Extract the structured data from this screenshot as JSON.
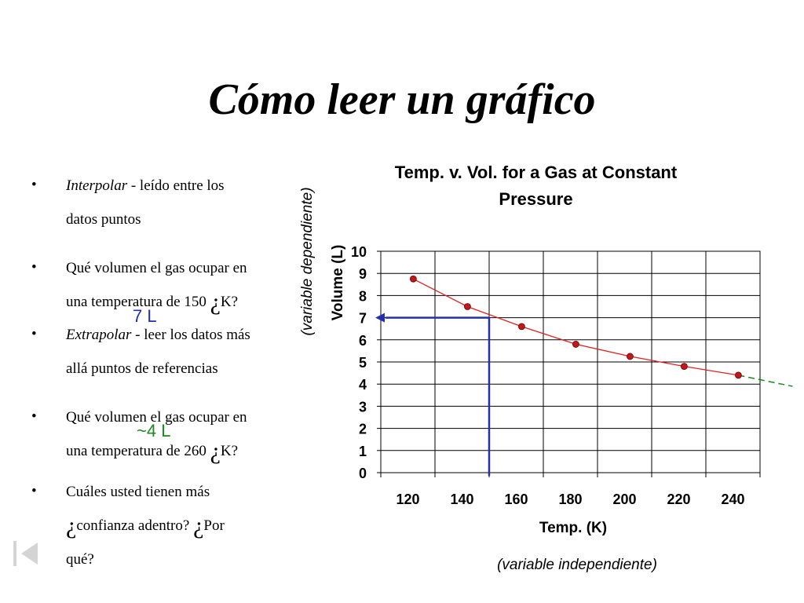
{
  "page": {
    "title": "Cómo leer un gráfico"
  },
  "bullets": [
    {
      "mark": "•",
      "lines": [
        [
          {
            "t": "Interpolar",
            "i": true
          },
          {
            "t": " - leído entre los"
          }
        ],
        [
          {
            "t": "datos  puntos"
          }
        ]
      ]
    },
    {
      "mark": "•",
      "lines": [
        [
          {
            "t": "Qué volumen el gas  ocupar en"
          }
        ],
        [
          {
            "t": "una temperatura de 150 "
          },
          {
            "t": "¿",
            "inv": true
          },
          {
            "t": "K?"
          }
        ]
      ]
    },
    {
      "mark": "•",
      "lines": [
        [
          {
            "t": "Extrapolar",
            "i": true
          },
          {
            "t": " - leer los datos más"
          }
        ],
        [
          {
            "t": "allá  puntos de referencias"
          }
        ]
      ]
    },
    {
      "mark": "•",
      "lines": [
        [
          {
            "t": "Qué volumen el gas  ocupar en"
          }
        ],
        [
          {
            "t": "una temperatura de 260 "
          },
          {
            "t": "¿",
            "inv": true
          },
          {
            "t": "K?"
          }
        ]
      ]
    },
    {
      "mark": "•",
      "lines": [
        [
          {
            "t": "Cuáles usted tienen más"
          }
        ],
        [
          {
            "t": "¿",
            "inv": true
          },
          {
            "t": "confianza adentro?  "
          },
          {
            "t": "¿",
            "inv": true
          },
          {
            "t": "Por"
          }
        ],
        [
          {
            "t": "qué?"
          }
        ]
      ]
    }
  ],
  "annotations": {
    "interp_value": "7 L",
    "extrap_value": "~4 L",
    "interp_color": "#2430a8",
    "extrap_color": "#1a8a1a"
  },
  "chart_data": {
    "type": "scatter",
    "title_line1": "Temp. v. Vol. for a Gas at Constant",
    "title_line2": "Pressure",
    "xlabel": "Temp. (K)",
    "ylabel": "Volume (L)",
    "xlabel_note": "(variable independiente)",
    "ylabel_note": "(variable dependiente)",
    "x": [
      120,
      140,
      160,
      180,
      200,
      220,
      240
    ],
    "x_ticks": [
      "120",
      "140",
      "160",
      "180",
      "200",
      "220",
      "240"
    ],
    "y_ticks": [
      "0",
      "1",
      "2",
      "3",
      "4",
      "5",
      "6",
      "7",
      "8",
      "9",
      "10"
    ],
    "ylim": [
      0,
      10
    ],
    "series": [
      {
        "points": [
          [
            122,
            8.75
          ],
          [
            142,
            7.5
          ],
          [
            162,
            6.6
          ],
          [
            182,
            5.8
          ],
          [
            202,
            5.25
          ],
          [
            222,
            4.8
          ],
          [
            242,
            4.4
          ]
        ],
        "marker_color": "#c0181c",
        "line_color": "#e02020"
      }
    ],
    "interpolation": {
      "x": 150,
      "y": 7
    },
    "extrapolation_to": {
      "x": 262,
      "y": 3.9
    },
    "grid": true
  },
  "nav": {
    "icon": "first-slide-icon"
  }
}
